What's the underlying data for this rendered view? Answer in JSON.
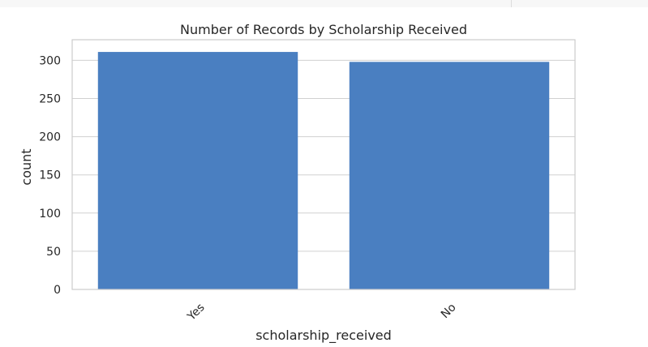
{
  "chart_data": {
    "type": "bar",
    "title": "Number of Records by Scholarship Received",
    "xlabel": "scholarship_received",
    "ylabel": "count",
    "categories": [
      "Yes",
      "No"
    ],
    "values": [
      311,
      298
    ],
    "ylim": [
      0,
      327
    ],
    "yticks": [
      0,
      50,
      100,
      150,
      200,
      250,
      300
    ],
    "grid": true,
    "legend": "none",
    "bar_color": "#4a7fc1",
    "grid_color": "#d0d0d0",
    "frame_color": "#cccccc"
  }
}
